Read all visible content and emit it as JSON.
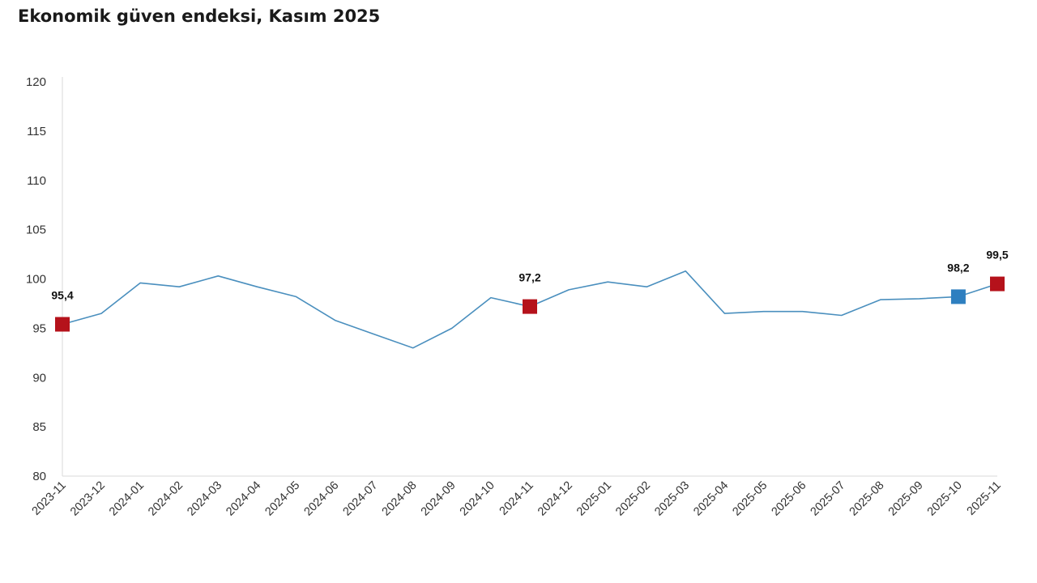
{
  "title": "Ekonomik güven endeksi, Kasım 2025",
  "chart_data": {
    "type": "line",
    "title": "Ekonomik güven endeksi, Kasım 2025",
    "xlabel": "",
    "ylabel": "",
    "ylim": [
      80,
      120
    ],
    "yticks": [
      "80",
      "85",
      "90",
      "95",
      "100",
      "105",
      "110",
      "115",
      "120"
    ],
    "grid": false,
    "categories": [
      "2023-11",
      "2023-12",
      "2024-01",
      "2024-02",
      "2024-03",
      "2024-04",
      "2024-05",
      "2024-06",
      "2024-07",
      "2024-08",
      "2024-09",
      "2024-10",
      "2024-11",
      "2024-12",
      "2025-01",
      "2025-02",
      "2025-03",
      "2025-04",
      "2025-05",
      "2025-06",
      "2025-07",
      "2025-08",
      "2025-09",
      "2025-10",
      "2025-11"
    ],
    "series": [
      {
        "values": [
          95.4,
          96.5,
          99.6,
          99.2,
          100.3,
          99.2,
          98.2,
          95.8,
          94.4,
          93.0,
          95.0,
          98.1,
          97.2,
          98.9,
          99.7,
          99.2,
          100.8,
          96.5,
          96.7,
          96.7,
          96.3,
          97.9,
          98.0,
          98.2,
          99.5
        ],
        "color": "#4a8fbe"
      }
    ],
    "markers": [
      {
        "index": 0,
        "label": "95,4",
        "color": "#b5121b"
      },
      {
        "index": 12,
        "label": "97,2",
        "color": "#b5121b"
      },
      {
        "index": 23,
        "label": "98,2",
        "color": "#2e7fc0"
      },
      {
        "index": 24,
        "label": "99,5",
        "color": "#b5121b"
      }
    ],
    "axis_color": "#d9d9d9"
  }
}
